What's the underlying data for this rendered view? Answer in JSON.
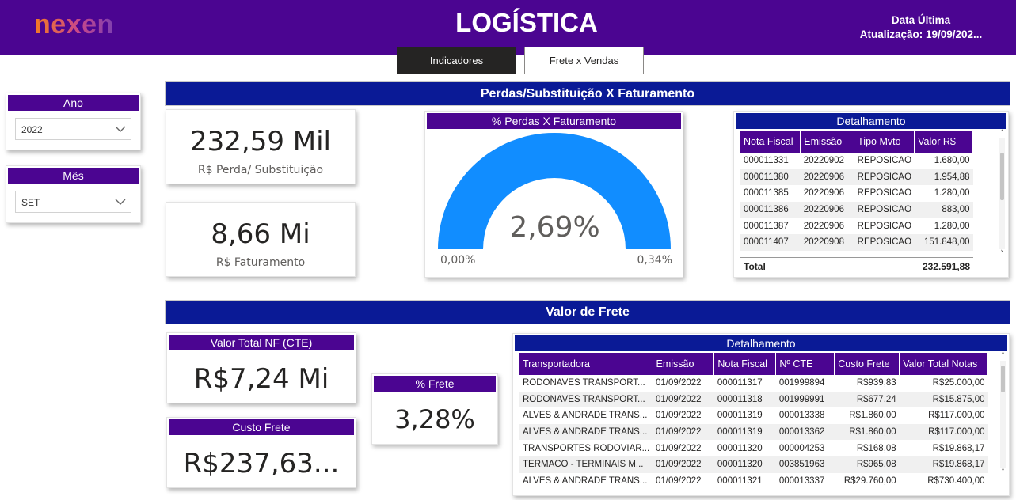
{
  "header": {
    "logo": "nexen",
    "title": "LOGÍSTICA",
    "update_line1": "Data Última",
    "update_line2": "Atualização: 19/09/202..."
  },
  "tabs": {
    "active": "Indicadores",
    "inactive": "Frete x Vendas"
  },
  "slicers": {
    "ano": {
      "title": "Ano",
      "value": "2022"
    },
    "mes": {
      "title": "Mês",
      "value": "SET"
    }
  },
  "section_losses": {
    "title": "Perdas/Substituição X Faturamento"
  },
  "kpi_loss": {
    "value": "232,59 Mil",
    "label": "R$ Perda/ Substituição"
  },
  "kpi_revenue": {
    "value": "8,66 Mi",
    "label": "R$ Faturamento"
  },
  "gauge": {
    "title": "% Perdas X Faturamento",
    "value_label": "2,69%",
    "min_label": "0,00%",
    "max_label": "0,34%",
    "fill_fraction": 1.0,
    "color": "#118dff"
  },
  "detail_losses": {
    "title": "Detalhamento",
    "columns": [
      "Nota Fiscal",
      "Emissão",
      "Tipo Mvto",
      "Valor R$"
    ],
    "rows": [
      [
        "000011331",
        "20220902",
        "REPOSICAO",
        "1.680,00"
      ],
      [
        "000011380",
        "20220906",
        "REPOSICAO",
        "1.954,88"
      ],
      [
        "000011385",
        "20220906",
        "REPOSICAO",
        "1.280,00"
      ],
      [
        "000011386",
        "20220906",
        "REPOSICAO",
        "883,00"
      ],
      [
        "000011387",
        "20220906",
        "REPOSICAO",
        "1.280,00"
      ],
      [
        "000011407",
        "20220908",
        "REPOSICAO",
        "151.848,00"
      ]
    ],
    "total_label": "Total",
    "total_value": "232.591,88"
  },
  "section_freight": {
    "title": "Valor de Frete"
  },
  "kpi_nf_total": {
    "title": "Valor Total NF (CTE)",
    "value": "R$7,24 Mi"
  },
  "kpi_freight_cost": {
    "title": "Custo Frete",
    "value": "R$237,63..."
  },
  "kpi_freight_pct": {
    "title": "% Frete",
    "value": "3,28%"
  },
  "detail_freight": {
    "title": "Detalhamento",
    "columns": [
      "Transportadora",
      "Emissão",
      "Nota Fiscal",
      "Nº CTE",
      "Custo Frete",
      "Valor Total Notas"
    ],
    "rows": [
      [
        "RODONAVES TRANSPORT...",
        "01/09/2022",
        "000011317",
        "001999894",
        "R$939,83",
        "R$25.000,00"
      ],
      [
        "RODONAVES TRANSPORT...",
        "01/09/2022",
        "000011318",
        "001999991",
        "R$677,24",
        "R$15.875,00"
      ],
      [
        "ALVES & ANDRADE TRANS...",
        "01/09/2022",
        "000011319",
        "000013338",
        "R$1.860,00",
        "R$117.000,00"
      ],
      [
        "ALVES & ANDRADE TRANS...",
        "01/09/2022",
        "000011319",
        "000013362",
        "R$1.860,00",
        "R$117.000,00"
      ],
      [
        "TRANSPORTES RODOVIAR...",
        "01/09/2022",
        "000011320",
        "000004253",
        "R$168,08",
        "R$19.868,17"
      ],
      [
        "TERMACO - TERMINAIS M...",
        "01/09/2022",
        "000011320",
        "003851963",
        "R$965,08",
        "R$19.868,17"
      ],
      [
        "ALVES & ANDRADE TRANS...",
        "01/09/2022",
        "000011321",
        "000013337",
        "R$29.760,00",
        "R$730.400,00"
      ]
    ]
  }
}
